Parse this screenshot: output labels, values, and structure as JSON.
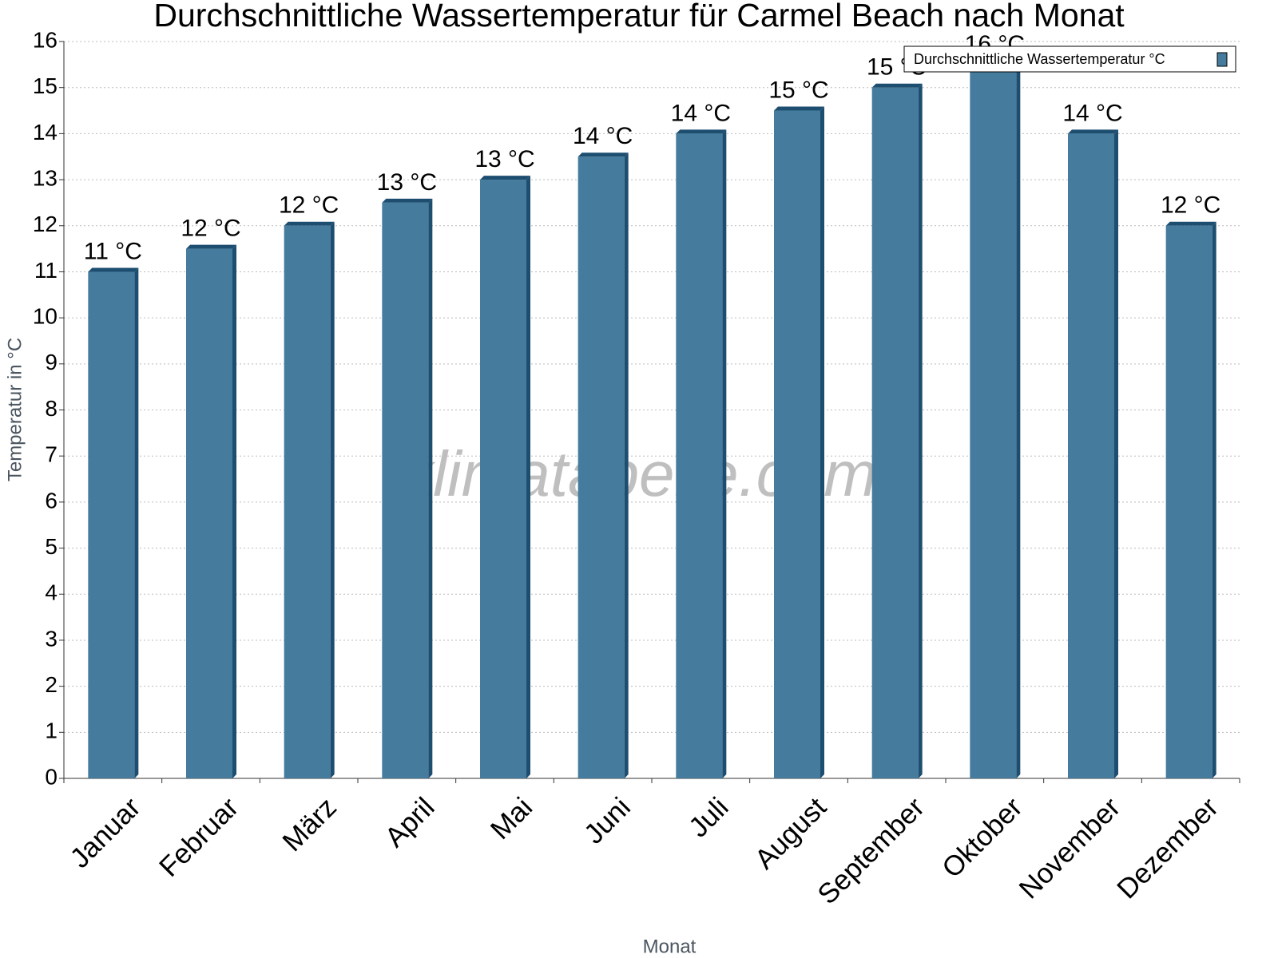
{
  "chart_data": {
    "type": "bar",
    "title": "Durchschnittliche Wassertemperatur für Carmel Beach nach Monat",
    "x_label": "Monat",
    "y_label": "Temperatur in °C",
    "watermark": "klimatabelle.com",
    "categories": [
      "Januar",
      "Februar",
      "März",
      "April",
      "Mai",
      "Juni",
      "Juli",
      "August",
      "September",
      "Oktober",
      "November",
      "Dezember"
    ],
    "series": [
      {
        "name": "Durchschnittliche Wassertemperatur °C",
        "color": "#457b9d",
        "values": [
          11,
          11.5,
          12,
          12.5,
          13,
          13.5,
          14,
          14.5,
          15,
          15.5,
          14,
          12
        ],
        "value_labels": [
          "11 °C",
          "12 °C",
          "12 °C",
          "13 °C",
          "13 °C",
          "14 °C",
          "14 °C",
          "15 °C",
          "15 °C",
          "16 °C",
          "14 °C",
          "12 °C"
        ]
      }
    ],
    "ylim": [
      0,
      16
    ],
    "yticks": [
      0,
      1,
      2,
      3,
      4,
      5,
      6,
      7,
      8,
      9,
      10,
      11,
      12,
      13,
      14,
      15,
      16
    ],
    "grid": true,
    "legend": "top-right"
  }
}
